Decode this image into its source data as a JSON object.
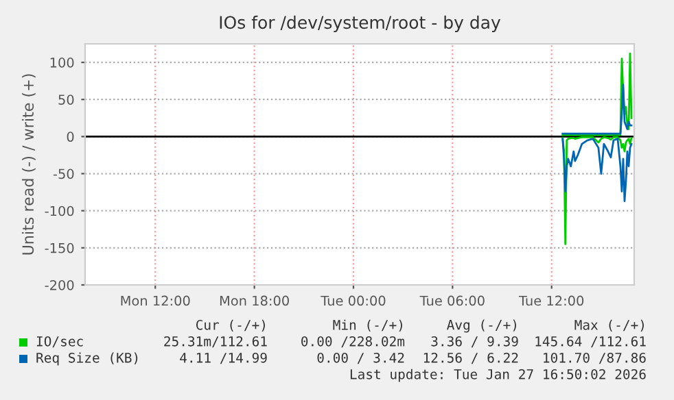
{
  "chart_data": {
    "type": "line",
    "title": "IOs for /dev/system/root - by day",
    "ylabel": "Units read (-) / write (+)",
    "x": [
      "2026-01-27T12:40",
      "2026-01-27T12:45",
      "2026-01-27T12:50",
      "2026-01-27T12:55",
      "2026-01-27T13:00",
      "2026-01-27T13:10",
      "2026-01-27T13:20",
      "2026-01-27T13:25",
      "2026-01-27T13:35",
      "2026-01-27T13:50",
      "2026-01-27T14:10",
      "2026-01-27T14:30",
      "2026-01-27T14:50",
      "2026-01-27T15:00",
      "2026-01-27T15:10",
      "2026-01-27T15:25",
      "2026-01-27T15:35",
      "2026-01-27T15:45",
      "2026-01-27T16:00",
      "2026-01-27T16:10",
      "2026-01-27T16:15",
      "2026-01-27T16:20",
      "2026-01-27T16:25",
      "2026-01-27T16:30",
      "2026-01-27T16:35",
      "2026-01-27T16:40",
      "2026-01-27T16:45",
      "2026-01-27T16:50"
    ],
    "series": [
      {
        "color": "#00cc00",
        "values": [
          -2,
          -20,
          -145,
          -5,
          -3,
          -2,
          -2,
          -3,
          -2,
          -1,
          -1,
          -1,
          -8,
          -3,
          -1,
          -2,
          -4,
          -1,
          -1,
          -5,
          -15,
          -10,
          -20,
          -8,
          -5,
          -3,
          -10,
          -2
        ]
      },
      {
        "name": "IO/sec",
        "color": "#00cc00",
        "values": [
          2,
          2,
          2,
          2,
          2,
          2,
          2,
          2,
          2,
          2,
          2,
          2,
          2,
          2,
          2,
          2,
          2,
          2,
          2,
          2,
          105,
          60,
          30,
          40,
          15,
          10,
          112,
          25
        ]
      },
      {
        "color": "#0066b3",
        "values": [
          -3,
          -30,
          -74,
          -40,
          -30,
          -40,
          -20,
          -33,
          -25,
          -10,
          -5,
          -3,
          -15,
          -50,
          -10,
          -20,
          -28,
          -5,
          -3,
          -40,
          -74,
          -30,
          -87,
          -60,
          -20,
          -40,
          -15,
          -10
        ]
      },
      {
        "name": "Req Size (KB)",
        "color": "#0066b3",
        "values": [
          4,
          4,
          4,
          4,
          4,
          4,
          4,
          4,
          4,
          4,
          4,
          4,
          4,
          4,
          4,
          4,
          4,
          4,
          4,
          4,
          30,
          70,
          20,
          15,
          10,
          20,
          15,
          15
        ]
      }
    ],
    "xlim": [
      "2026-01-26T07:45",
      "2026-01-27T17:00"
    ],
    "xticks": [
      {
        "value": "2026-01-26T12:00",
        "label": "Mon 12:00"
      },
      {
        "value": "2026-01-26T18:00",
        "label": "Mon 18:00"
      },
      {
        "value": "2026-01-27T00:00",
        "label": "Tue 00:00"
      },
      {
        "value": "2026-01-27T06:00",
        "label": "Tue 06:00"
      },
      {
        "value": "2026-01-27T12:00",
        "label": "Tue 12:00"
      }
    ],
    "ylim": [
      -200,
      125
    ],
    "yticks": [
      -200,
      -150,
      -100,
      -50,
      0,
      50,
      100
    ],
    "ref_lines": [
      {
        "axis": "y",
        "value": 0,
        "color": "#000000"
      }
    ],
    "grid": true,
    "legend": "bottom",
    "line_style": "solid",
    "marker": "none",
    "annotations": [
      "Cur (-/+)",
      "Min (-/+)",
      "Avg (-/+)",
      "Max (-/+)",
      "25.31m/112.61",
      "0.00 /228.02m",
      "3.36 / 9.39",
      "145.64 /112.61",
      "4.11 /14.99",
      "0.00 / 3.42",
      "12.56 / 6.22",
      "101.70 /87.86",
      "Last update: Tue Jan 27 16:50:02 2026"
    ]
  }
}
